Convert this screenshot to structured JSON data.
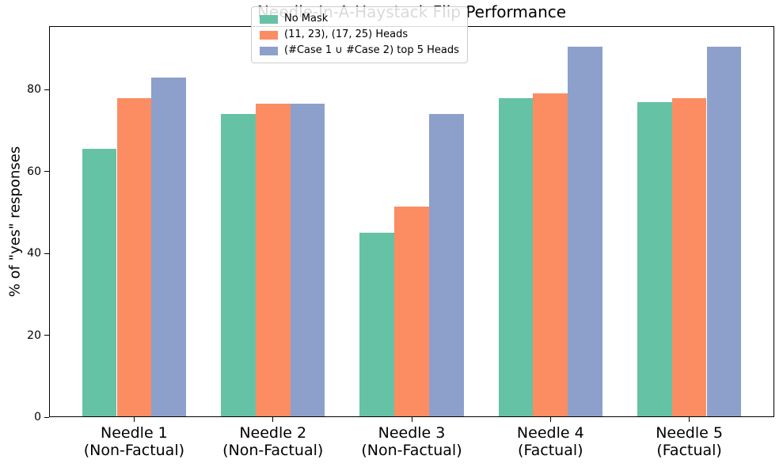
{
  "chart_data": {
    "type": "bar",
    "title": "Needle-In-A-Haystack Flip Performance",
    "xlabel": "",
    "ylabel": "% of \"yes\" responses",
    "categories": [
      "Needle 1\n(Non-Factual)",
      "Needle 2\n(Non-Factual)",
      "Needle 3\n(Non-Factual)",
      "Needle 4\n(Factual)",
      "Needle 5\n(Factual)"
    ],
    "series": [
      {
        "name": "No Mask",
        "color": "#66c2a5",
        "values": [
          65.5,
          74.0,
          45.0,
          78.0,
          77.0
        ]
      },
      {
        "name": "(11, 23), (17, 25) Heads",
        "color": "#fc8d62",
        "values": [
          78.0,
          76.5,
          51.5,
          79.0,
          78.0
        ]
      },
      {
        "name": "(#Case 1 ∪ #Case 2) top 5 Heads",
        "color": "#8da0cb",
        "values": [
          83.0,
          76.5,
          74.0,
          90.5,
          90.5
        ]
      }
    ],
    "yticks": [
      0,
      20,
      40,
      60,
      80
    ],
    "ylim": [
      0,
      95.5
    ],
    "xlim": [
      -0.6125,
      4.6125
    ],
    "bar_width": 0.25,
    "grid": false,
    "legend_position": "upper center, inside axes",
    "axis_color": "#000000",
    "background_color": "#ffffff"
  }
}
